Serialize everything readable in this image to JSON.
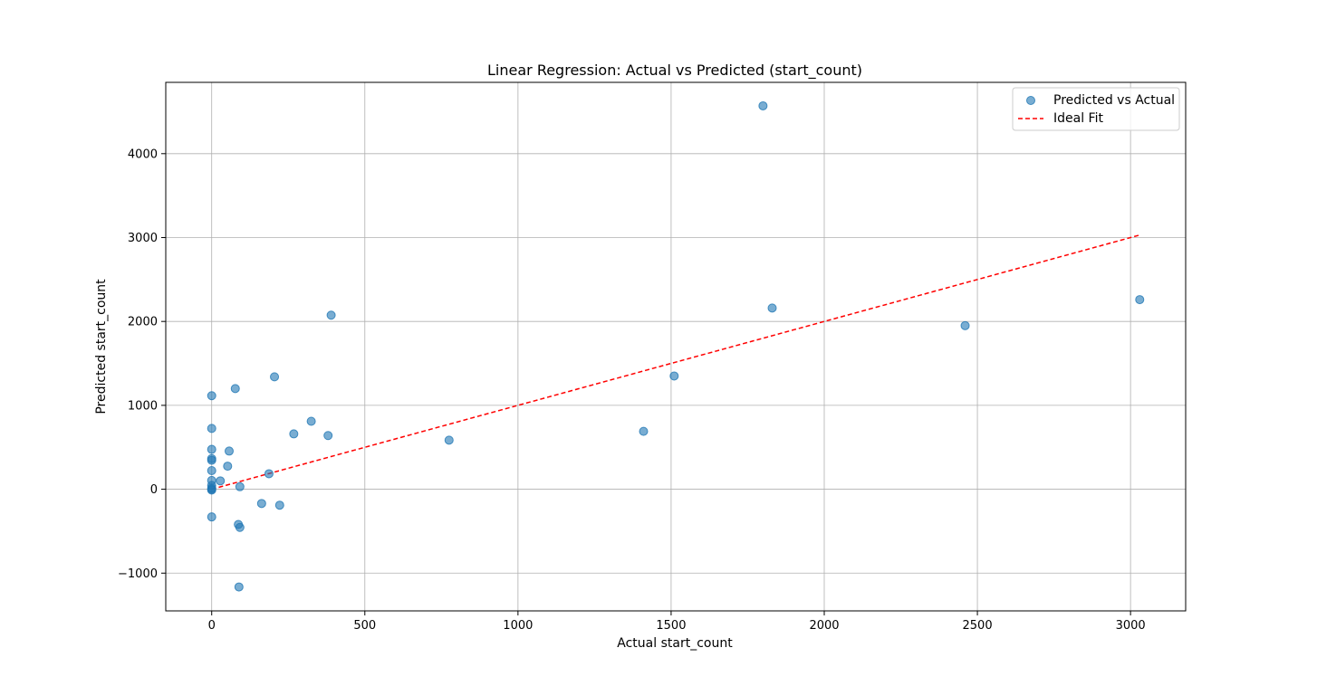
{
  "chart_data": {
    "type": "scatter",
    "title": "Linear Regression: Actual vs Predicted (start_count)",
    "xlabel": "Actual start_count",
    "ylabel": "Predicted start_count",
    "xlim": [
      -150,
      3180
    ],
    "ylim": [
      -1450,
      4850
    ],
    "xticks": [
      0,
      500,
      1000,
      1500,
      2000,
      2500,
      3000
    ],
    "yticks": [
      -1000,
      0,
      1000,
      2000,
      3000,
      4000
    ],
    "xtick_labels": [
      "0",
      "500",
      "1000",
      "1500",
      "2000",
      "2500",
      "3000"
    ],
    "ytick_labels": [
      "−1000",
      "0",
      "1000",
      "2000",
      "3000",
      "4000"
    ],
    "grid": true,
    "legend_position": "top-right",
    "series": [
      {
        "name": "Predicted vs Actual",
        "kind": "scatter",
        "color": "#1f77b4",
        "alpha": 0.6,
        "points": [
          [
            1800,
            4570
          ],
          [
            1830,
            2160
          ],
          [
            3030,
            2260
          ],
          [
            2460,
            1950
          ],
          [
            1510,
            1350
          ],
          [
            1410,
            690
          ],
          [
            775,
            585
          ],
          [
            390,
            2075
          ],
          [
            205,
            1340
          ],
          [
            77,
            1200
          ],
          [
            325,
            810
          ],
          [
            268,
            660
          ],
          [
            380,
            640
          ],
          [
            0,
            1115
          ],
          [
            0,
            725
          ],
          [
            0,
            475
          ],
          [
            57,
            455
          ],
          [
            0,
            365
          ],
          [
            0,
            345
          ],
          [
            52,
            275
          ],
          [
            0,
            222
          ],
          [
            187,
            185
          ],
          [
            0,
            105
          ],
          [
            28,
            100
          ],
          [
            0,
            45
          ],
          [
            92,
            30
          ],
          [
            0,
            15
          ],
          [
            0,
            0
          ],
          [
            0,
            -10
          ],
          [
            163,
            -170
          ],
          [
            222,
            -190
          ],
          [
            0,
            -330
          ],
          [
            87,
            -420
          ],
          [
            92,
            -455
          ],
          [
            89,
            -1165
          ]
        ]
      },
      {
        "name": "Ideal Fit",
        "kind": "line",
        "color": "#ff0000",
        "dashed": true,
        "points": [
          [
            0,
            0
          ],
          [
            3030,
            3030
          ]
        ]
      }
    ]
  }
}
